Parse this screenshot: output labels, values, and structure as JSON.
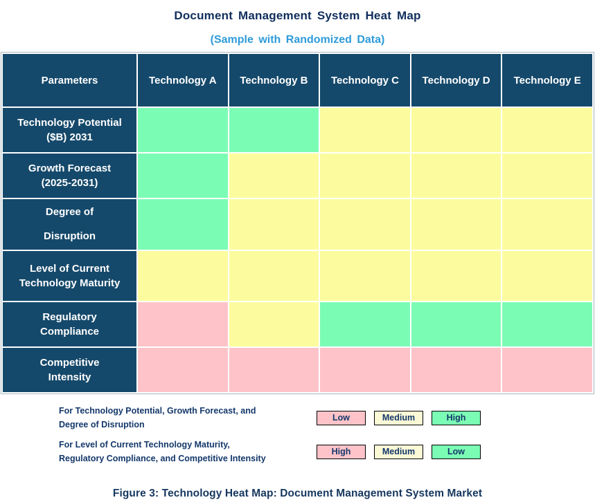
{
  "title": "Document Management System Heat Map",
  "subtitle": "(Sample with Randomized Data)",
  "caption": "Figure 3: Technology Heat Map: Document Management System Market",
  "colors": {
    "header_bg": "#15496B",
    "green": "#7BFCB4",
    "yellow": "#FCFC9E",
    "pink": "#FDC3C8",
    "legend_yellow": "#FBF8D6",
    "title_navy": "#0F2E5C",
    "subtitle_blue": "#2E9BD9",
    "legend_navy": "#14386B",
    "caption_navy": "#16375F"
  },
  "table": {
    "header": [
      "Parameters",
      "Technology A",
      "Technology B",
      "Technology C",
      "Technology D",
      "Technology E"
    ],
    "rows": [
      {
        "label": "Technology Potential\n($B) 2031",
        "cells": [
          "green",
          "green",
          "yellow",
          "yellow",
          "yellow"
        ]
      },
      {
        "label": "Growth Forecast\n(2025-2031)",
        "cells": [
          "green",
          "yellow",
          "yellow",
          "yellow",
          "yellow"
        ]
      },
      {
        "label": "Degree of\nDisruption",
        "cells": [
          "green",
          "yellow",
          "yellow",
          "yellow",
          "yellow"
        ]
      },
      {
        "label": "Level of Current\nTechnology Maturity",
        "cells": [
          "yellow",
          "yellow",
          "yellow",
          "yellow",
          "yellow"
        ]
      },
      {
        "label": "Regulatory\nCompliance",
        "cells": [
          "pink",
          "yellow",
          "green",
          "green",
          "green"
        ]
      },
      {
        "label": "Competitive\nIntensity",
        "cells": [
          "pink",
          "pink",
          "pink",
          "pink",
          "pink"
        ]
      }
    ]
  },
  "legend": {
    "rows": [
      {
        "description": "For Technology Potential, Growth Forecast, and\nDegree of Disruption",
        "items": [
          {
            "label": "Low",
            "color": "pink"
          },
          {
            "label": "Medium",
            "color": "yellow"
          },
          {
            "label": "High",
            "color": "green"
          }
        ]
      },
      {
        "description": "For Level of Current Technology Maturity,\nRegulatory Compliance, and Competitive Intensity",
        "items": [
          {
            "label": "High",
            "color": "pink"
          },
          {
            "label": "Medium",
            "color": "yellow"
          },
          {
            "label": "Low",
            "color": "green"
          }
        ]
      }
    ]
  },
  "chart_data": {
    "type": "heatmap",
    "title": "Document Management System Heat Map",
    "subtitle": "(Sample with Randomized Data)",
    "columns": [
      "Technology A",
      "Technology B",
      "Technology C",
      "Technology D",
      "Technology E"
    ],
    "rows": [
      "Technology Potential ($B) 2031",
      "Growth Forecast (2025-2031)",
      "Degree of Disruption",
      "Level of Current Technology Maturity",
      "Regulatory Compliance",
      "Competitive Intensity"
    ],
    "cell_colors": [
      [
        "green",
        "green",
        "yellow",
        "yellow",
        "yellow"
      ],
      [
        "green",
        "yellow",
        "yellow",
        "yellow",
        "yellow"
      ],
      [
        "green",
        "yellow",
        "yellow",
        "yellow",
        "yellow"
      ],
      [
        "yellow",
        "yellow",
        "yellow",
        "yellow",
        "yellow"
      ],
      [
        "pink",
        "yellow",
        "green",
        "green",
        "green"
      ],
      [
        "pink",
        "pink",
        "pink",
        "pink",
        "pink"
      ]
    ],
    "values": [
      [
        "High",
        "High",
        "Medium",
        "Medium",
        "Medium"
      ],
      [
        "High",
        "Medium",
        "Medium",
        "Medium",
        "Medium"
      ],
      [
        "High",
        "Medium",
        "Medium",
        "Medium",
        "Medium"
      ],
      [
        "Medium",
        "Medium",
        "Medium",
        "Medium",
        "Medium"
      ],
      [
        "High",
        "Medium",
        "Low",
        "Low",
        "Low"
      ],
      [
        "High",
        "High",
        "High",
        "High",
        "High"
      ]
    ],
    "legend_note": "Color scale inverted for last three parameters: pink=High, yellow=Medium, green=Low",
    "legend_position": "below",
    "grid": true
  }
}
